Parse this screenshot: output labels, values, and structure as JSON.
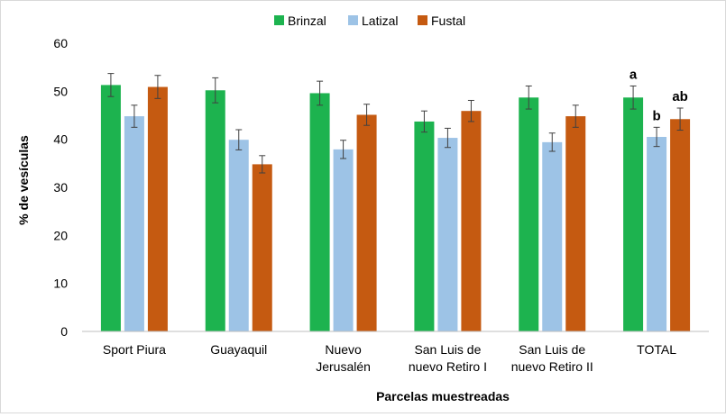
{
  "chart_data": {
    "type": "bar",
    "xlabel": "Parcelas muestreadas",
    "ylabel": "% de vesículas",
    "ylim": [
      0,
      60
    ],
    "yticks": [
      0,
      10,
      20,
      30,
      40,
      50,
      60
    ],
    "grid": false,
    "legend_position": "top",
    "categories": [
      [
        "Sport Piura"
      ],
      [
        "Guayaquil"
      ],
      [
        "Nuevo",
        "Jerusalén"
      ],
      [
        "San Luis de",
        "nuevo Retiro I"
      ],
      [
        "San Luis de",
        "nuevo Retiro II"
      ],
      [
        "TOTAL"
      ]
    ],
    "series": [
      {
        "name": "Brinzal",
        "color": "#1db34f",
        "values": [
          51.3,
          50.2,
          49.6,
          43.7,
          48.7,
          48.7
        ],
        "errors": [
          2.4,
          2.6,
          2.5,
          2.2,
          2.4,
          2.4
        ]
      },
      {
        "name": "Latizal",
        "color": "#9dc3e6",
        "values": [
          44.8,
          39.9,
          37.9,
          40.3,
          39.4,
          40.5
        ],
        "errors": [
          2.3,
          2.1,
          1.9,
          2.0,
          1.9,
          2.0
        ]
      },
      {
        "name": "Fustal",
        "color": "#c55a11",
        "values": [
          50.9,
          34.8,
          45.1,
          45.9,
          44.8,
          44.2
        ],
        "errors": [
          2.4,
          1.8,
          2.2,
          2.2,
          2.3,
          2.3
        ]
      }
    ],
    "annotations": [
      {
        "category_index": 5,
        "series_index": 0,
        "text": "a"
      },
      {
        "category_index": 5,
        "series_index": 1,
        "text": "b"
      },
      {
        "category_index": 5,
        "series_index": 2,
        "text": "ab"
      }
    ]
  }
}
